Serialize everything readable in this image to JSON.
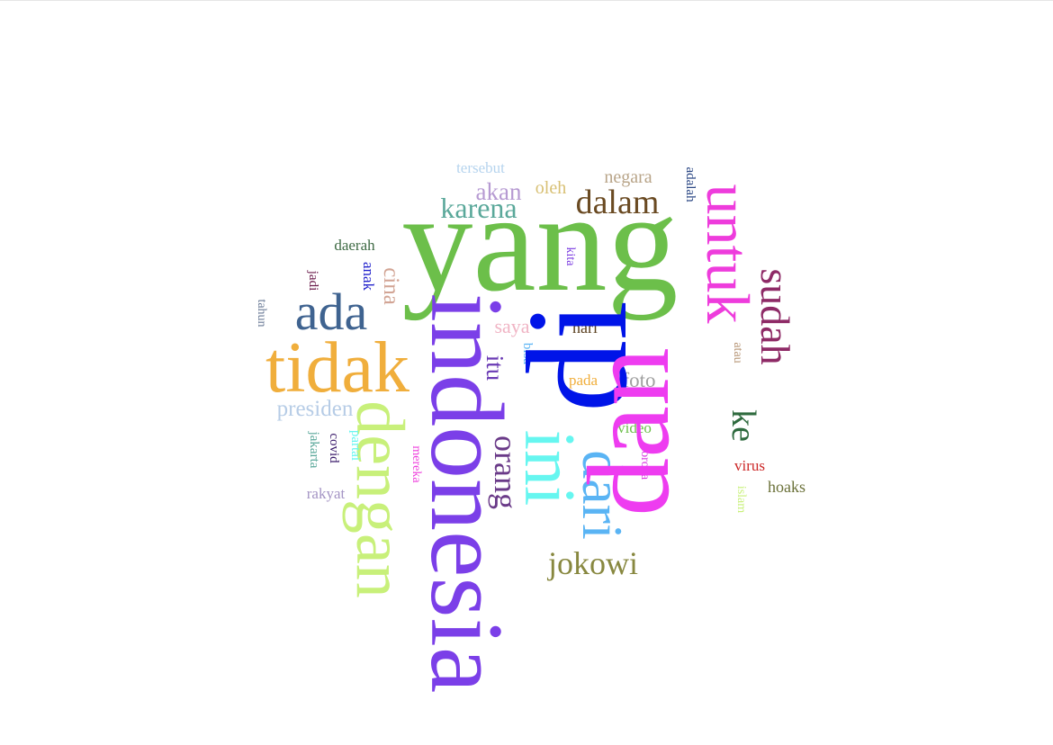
{
  "words": [
    {
      "text": "yang",
      "color": "#6cbf4a"
    },
    {
      "text": "di",
      "color": "#0014e8"
    },
    {
      "text": "dan",
      "color": "#ee3cf0"
    },
    {
      "text": "indonesia",
      "color": "#7b3fe8"
    },
    {
      "text": "tidak",
      "color": "#f0ae3c"
    },
    {
      "text": "dengan",
      "color": "#c8f07a"
    },
    {
      "text": "ini",
      "color": "#66f6f0"
    },
    {
      "text": "dari",
      "color": "#5ab4f4"
    },
    {
      "text": "untuk",
      "color": "#ee3cdc"
    },
    {
      "text": "ada",
      "color": "#3f6390"
    },
    {
      "text": "sudah",
      "color": "#8e2a66"
    },
    {
      "text": "dalam",
      "color": "#6a4a22"
    },
    {
      "text": "jokowi",
      "color": "#888840"
    },
    {
      "text": "orang",
      "color": "#6a3a88"
    },
    {
      "text": "karena",
      "color": "#5aa89a"
    },
    {
      "text": "ke",
      "color": "#2e6a3e"
    },
    {
      "text": "akan",
      "color": "#b69ad2"
    },
    {
      "text": "presiden",
      "color": "#b6cce6"
    },
    {
      "text": "itu",
      "color": "#6a3ab4"
    },
    {
      "text": "foto",
      "color": "#a0a0a0"
    },
    {
      "text": "negara",
      "color": "#b8a488"
    },
    {
      "text": "cina",
      "color": "#d2a494"
    },
    {
      "text": "oleh",
      "color": "#d8c074"
    },
    {
      "text": "saya",
      "color": "#f0b4c4"
    },
    {
      "text": "hari",
      "color": "#5a4020"
    },
    {
      "text": "tersebut",
      "color": "#b6d4ee"
    },
    {
      "text": "daerah",
      "color": "#3e6a44"
    },
    {
      "text": "pada",
      "color": "#f0ae3c"
    },
    {
      "text": "video",
      "color": "#6cbf4a"
    },
    {
      "text": "virus",
      "color": "#cc2828"
    },
    {
      "text": "hoaks",
      "color": "#6a7038"
    },
    {
      "text": "rakyat",
      "color": "#a494c4"
    },
    {
      "text": "anak",
      "color": "#2222cc"
    },
    {
      "text": "adalah",
      "color": "#2e4a86"
    },
    {
      "text": "kita",
      "color": "#7a3ae0"
    },
    {
      "text": "bisa",
      "color": "#5ab4f4"
    },
    {
      "text": "atau",
      "color": "#b69474"
    },
    {
      "text": "jadi",
      "color": "#6a1a4a"
    },
    {
      "text": "tahun",
      "color": "#6a7a96"
    },
    {
      "text": "covid",
      "color": "#3a1a6a"
    },
    {
      "text": "jakarta",
      "color": "#5aa89a"
    },
    {
      "text": "partai",
      "color": "#66f6f0"
    },
    {
      "text": "mereka",
      "color": "#ee3cdc"
    },
    {
      "text": "corona",
      "color": "#d63ce0"
    },
    {
      "text": "islam",
      "color": "#c8f07a"
    }
  ]
}
